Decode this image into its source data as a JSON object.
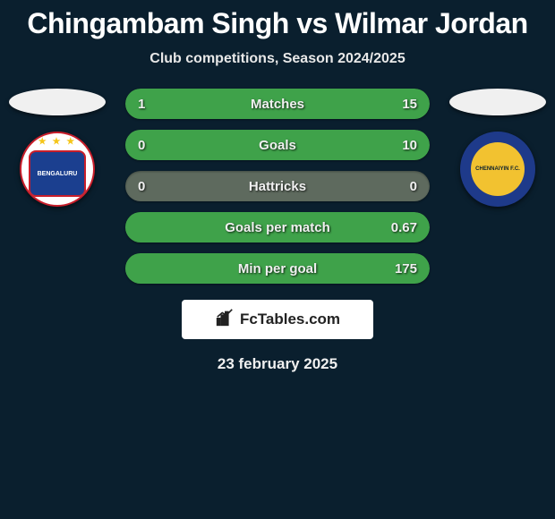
{
  "header": {
    "title": "Chingambam Singh vs Wilmar Jordan",
    "subtitle": "Club competitions, Season 2024/2025"
  },
  "left": {
    "flag_bg": "#f0f0f0",
    "badge_bg": "#ffffff",
    "badge_inner_bg": "#1b3f8f",
    "badge_text": "BENGALURU",
    "badge_text_color": "#ffffff",
    "badge_border": "#c81e2b"
  },
  "right": {
    "flag_bg": "#f0f0f0",
    "badge_bg": "#1e3a8a",
    "badge_inner_bg": "#f2c230",
    "badge_text": "CHENNAIYIN F.C.",
    "badge_text_color": "#0a1f2e",
    "badge_border": "#1e3a8a"
  },
  "bars": {
    "track_color": "#274a2f",
    "fill_left_color": "#3fa24a",
    "fill_right_color": "#3fa24a",
    "neutral_track": "#5e6a5e",
    "value_color": "#f0f0f0",
    "label_color": "#f0f0f0"
  },
  "stats": [
    {
      "label": "Matches",
      "left_val": "1",
      "right_val": "15",
      "left_pct": 6,
      "right_pct": 94
    },
    {
      "label": "Goals",
      "left_val": "0",
      "right_val": "10",
      "left_pct": 0,
      "right_pct": 100
    },
    {
      "label": "Hattricks",
      "left_val": "0",
      "right_val": "0",
      "left_pct": 0,
      "right_pct": 0
    },
    {
      "label": "Goals per match",
      "left_val": "",
      "right_val": "0.67",
      "left_pct": 0,
      "right_pct": 100
    },
    {
      "label": "Min per goal",
      "left_val": "",
      "right_val": "175",
      "left_pct": 0,
      "right_pct": 100
    }
  ],
  "footer": {
    "brand": "FcTables.com",
    "date": "23 february 2025"
  },
  "colors": {
    "background": "#0a1f2e"
  }
}
